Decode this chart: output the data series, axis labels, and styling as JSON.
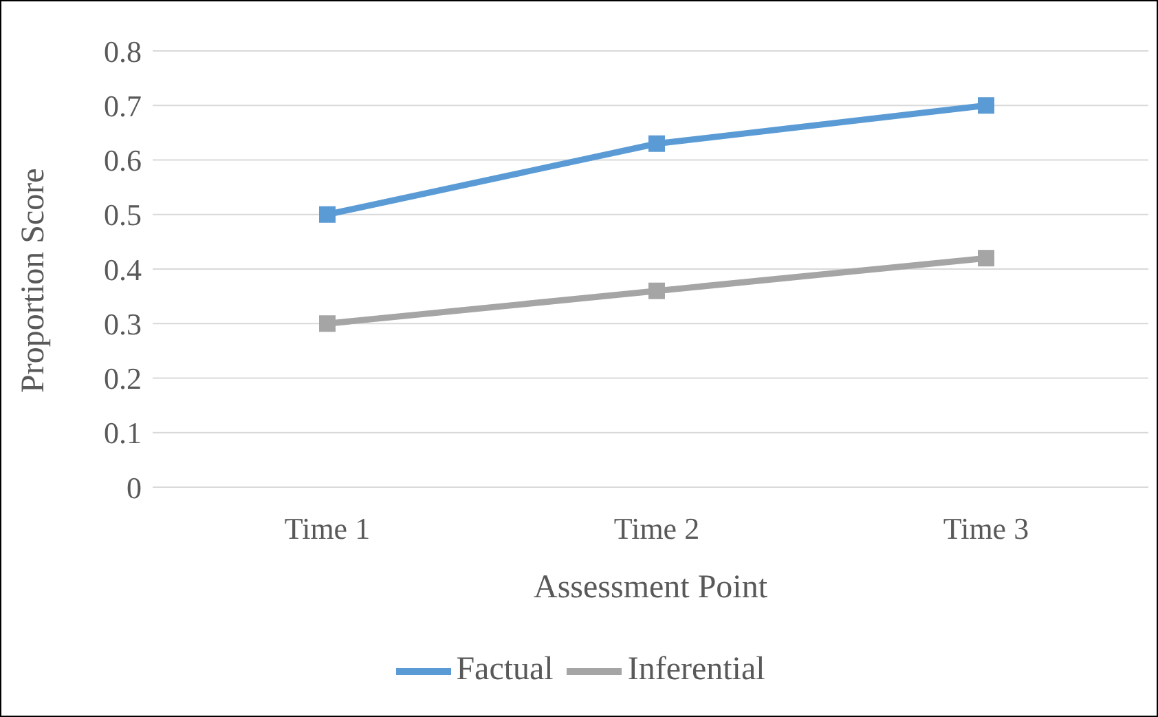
{
  "chart_data": {
    "type": "line",
    "xlabel": "Assessment Point",
    "ylabel": "Proportion Score",
    "categories": [
      "Time 1",
      "Time 2",
      "Time 3"
    ],
    "series": [
      {
        "name": "Factual",
        "color": "#5b9bd5",
        "values": [
          0.5,
          0.63,
          0.7
        ]
      },
      {
        "name": "Inferential",
        "color": "#a5a5a5",
        "values": [
          0.3,
          0.36,
          0.42
        ]
      }
    ],
    "ylim": [
      0,
      0.8
    ],
    "yticks": [
      0,
      0.1,
      0.2,
      0.3,
      0.4,
      0.5,
      0.6,
      0.7,
      0.8
    ],
    "grid": "y",
    "legend": "bottom",
    "marker": "square",
    "line_style": "solid"
  }
}
